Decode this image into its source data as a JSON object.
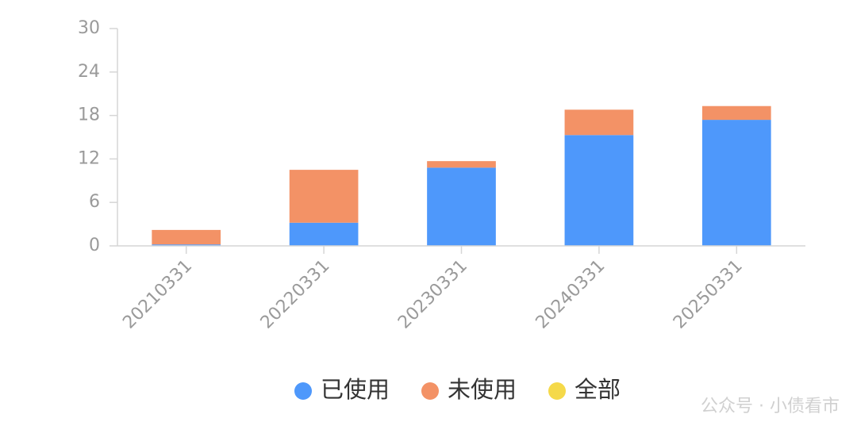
{
  "chart_data": {
    "type": "bar",
    "stacked": true,
    "categories": [
      "20210331",
      "20220331",
      "20230331",
      "20240331",
      "20250331"
    ],
    "series": [
      {
        "name": "已使用",
        "color": "#4e98fb",
        "values": [
          0.2,
          3.2,
          10.8,
          15.3,
          17.4
        ]
      },
      {
        "name": "未使用",
        "color": "#f39266",
        "values": [
          2.0,
          7.3,
          0.9,
          3.5,
          1.9
        ]
      },
      {
        "name": "全部",
        "color": "#f5d949",
        "values": [
          null,
          null,
          null,
          null,
          null
        ]
      }
    ],
    "ylim": [
      0,
      30
    ],
    "yticks": [
      0,
      6,
      12,
      18,
      24,
      30
    ],
    "grid": false,
    "watermark": "公众号 · 小债看市"
  }
}
